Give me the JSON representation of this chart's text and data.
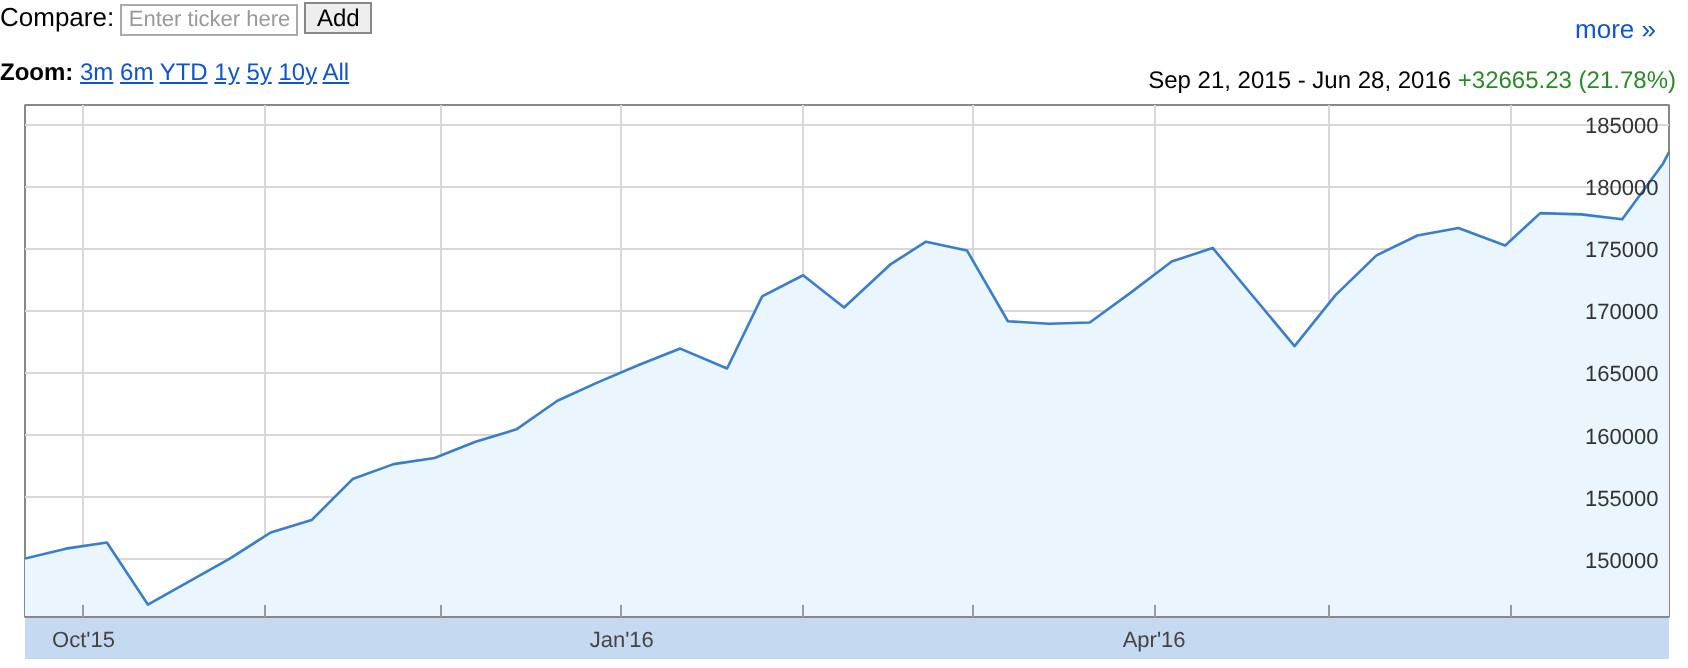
{
  "chart_data": {
    "type": "area",
    "title": "Sep 21, 2015 - Jun 28, 2016",
    "subtitle": "+32665.23 (21.78%)",
    "annotations": [
      "Compare:",
      "Enter ticker here",
      "Add",
      "more »",
      "Zoom:",
      "3m",
      "6m",
      "YTD",
      "1y",
      "5y",
      "10y",
      "All"
    ],
    "x": [
      "2015-09-21",
      "2015-09-28",
      "2015-10-05",
      "2015-10-12",
      "2015-10-26",
      "2015-11-02",
      "2015-11-09",
      "2015-11-16",
      "2015-11-23",
      "2015-11-30",
      "2015-12-07",
      "2015-12-14",
      "2015-12-21",
      "2015-12-28",
      "2016-01-04",
      "2016-01-11",
      "2016-01-19",
      "2016-01-25",
      "2016-02-01",
      "2016-02-08",
      "2016-02-16",
      "2016-02-22",
      "2016-02-29",
      "2016-03-07",
      "2016-03-14",
      "2016-03-21",
      "2016-03-28",
      "2016-04-04",
      "2016-04-11",
      "2016-04-25",
      "2016-05-02",
      "2016-05-09",
      "2016-05-16",
      "2016-05-23",
      "2016-05-31",
      "2016-06-06",
      "2016-06-13",
      "2016-06-20",
      "2016-06-27",
      "2016-06-28"
    ],
    "series": [
      {
        "color": "#3a7dc9",
        "values": [
          150100,
          150900,
          151400,
          146400,
          150100,
          152200,
          153200,
          156500,
          157700,
          158200,
          159500,
          160500,
          162800,
          164300,
          165700,
          167000,
          165400,
          171200,
          172900,
          170300,
          173800,
          175600,
          174900,
          169200,
          169000,
          169100,
          171500,
          174000,
          175100,
          167200,
          171300,
          174500,
          176100,
          176700,
          175300,
          177900,
          177800,
          177400,
          181900,
          182800
        ]
      }
    ],
    "xlim": [
      "2015-09-21",
      "2016-06-28"
    ],
    "xticks": [
      {
        "value": "2015-10-01",
        "label": "Oct'15"
      },
      {
        "value": "2015-11-01",
        "label": null
      },
      {
        "value": "2015-12-01",
        "label": null
      },
      {
        "value": "2016-01-01",
        "label": "Jan'16"
      },
      {
        "value": "2016-02-01",
        "label": null
      },
      {
        "value": "2016-03-01",
        "label": null
      },
      {
        "value": "2016-04-01",
        "label": "Apr'16"
      },
      {
        "value": "2016-05-01",
        "label": null
      },
      {
        "value": "2016-06-01",
        "label": null
      }
    ],
    "ylim": [
      145400,
      186600
    ],
    "yticks": [
      150000,
      155000,
      160000,
      165000,
      170000,
      175000,
      180000,
      185000
    ],
    "grid": true
  }
}
